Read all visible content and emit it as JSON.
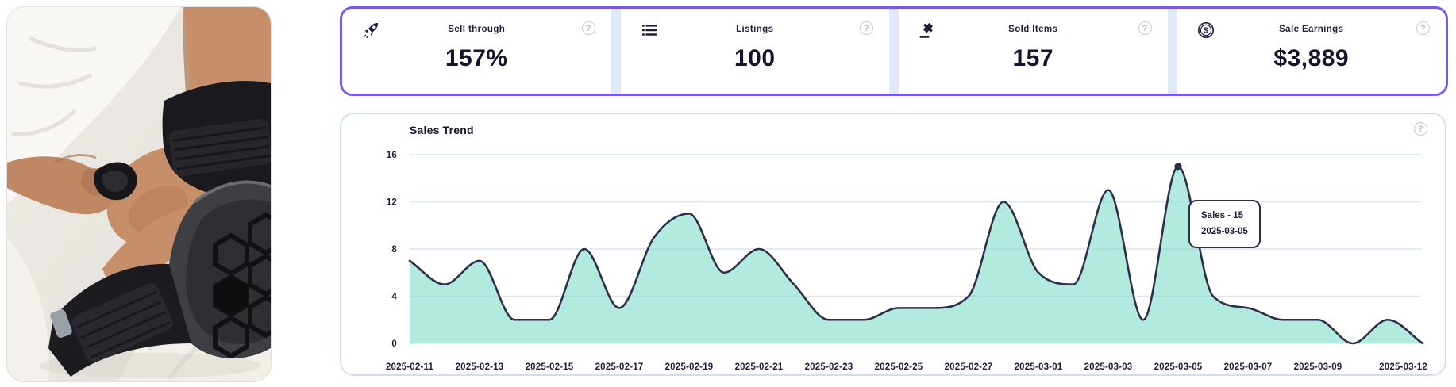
{
  "theme": {
    "accent_border": "#7a57ee",
    "panel_border": "#cfe0f5",
    "help_glyph": "?"
  },
  "stats_bar": {
    "cards": [
      {
        "icon": "rocket-icon",
        "label": "Sell through",
        "value": "157%"
      },
      {
        "icon": "list-icon",
        "label": "Listings",
        "value": "100"
      },
      {
        "icon": "gavel-icon",
        "label": "Sold Items",
        "value": "157"
      },
      {
        "icon": "dollar-coin-icon",
        "label": "Sale Earnings",
        "value": "$3,889"
      }
    ]
  },
  "chart": {
    "title": "Sales Trend",
    "tooltip": {
      "line1": "Sales - 15",
      "line2": "2025-03-05"
    }
  },
  "chart_data": {
    "type": "area",
    "title": "Sales Trend",
    "x": [
      "2025-02-11",
      "2025-02-12",
      "2025-02-13",
      "2025-02-14",
      "2025-02-15",
      "2025-02-16",
      "2025-02-17",
      "2025-02-18",
      "2025-02-19",
      "2025-02-20",
      "2025-02-21",
      "2025-02-22",
      "2025-02-23",
      "2025-02-24",
      "2025-02-25",
      "2025-02-26",
      "2025-02-27",
      "2025-02-28",
      "2025-03-01",
      "2025-03-02",
      "2025-03-03",
      "2025-03-04",
      "2025-03-05",
      "2025-03-06",
      "2025-03-07",
      "2025-03-08",
      "2025-03-09",
      "2025-03-10",
      "2025-03-11",
      "2025-03-12"
    ],
    "values": [
      7,
      5,
      7,
      2,
      2,
      8,
      3,
      9,
      11,
      6,
      8,
      5,
      2,
      2,
      3,
      3,
      4,
      12,
      6,
      5,
      13,
      2,
      15,
      4,
      3,
      2,
      2,
      0,
      2,
      0
    ],
    "xtick_indices": [
      0,
      2,
      4,
      6,
      8,
      10,
      12,
      14,
      16,
      18,
      20,
      22,
      24,
      26,
      29
    ],
    "yticks": [
      0,
      4,
      8,
      12,
      16
    ],
    "ylim": [
      0,
      16
    ],
    "grid": true,
    "legend": "none",
    "smooth": true,
    "highlight": {
      "index": 22,
      "value": 15,
      "label": "Sales - 15",
      "date": "2025-03-05"
    },
    "colors": {
      "line": "#2e2e4a",
      "fill": "#75d9c3",
      "fill_opacity": 0.55,
      "grid": "#d9e6f8",
      "text": "#1d1d3a"
    }
  }
}
